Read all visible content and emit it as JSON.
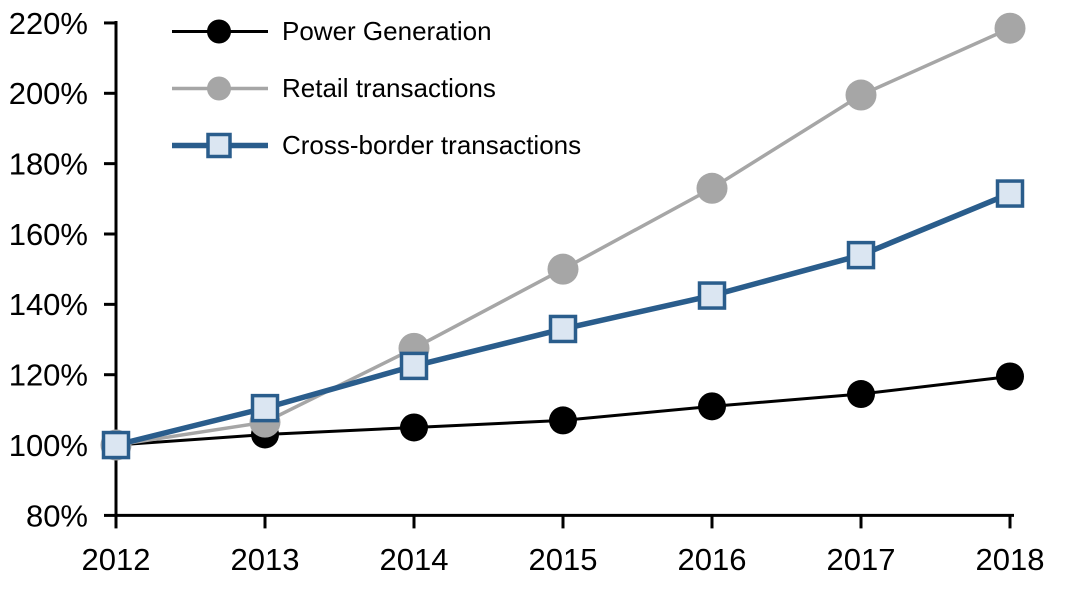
{
  "chart_data": {
    "type": "line",
    "x": [
      2012,
      2013,
      2014,
      2015,
      2016,
      2017,
      2018
    ],
    "x_tick_labels": [
      "2012",
      "2013",
      "2014",
      "2015",
      "2016",
      "2017",
      "2018"
    ],
    "y_tick_values": [
      80,
      100,
      120,
      140,
      160,
      180,
      200,
      220
    ],
    "y_tick_labels": [
      "80%",
      "100%",
      "120%",
      "140%",
      "160%",
      "180%",
      "200%",
      "220%"
    ],
    "ylim": [
      80,
      220
    ],
    "y_unit": "%",
    "grid": false,
    "legend_position": "top-left",
    "axis_color": "#000000",
    "series": [
      {
        "name": "Power Generation",
        "color": "#000000",
        "marker": "circle",
        "marker_fill": "#000000",
        "line_width": 3,
        "values": [
          100,
          103,
          105,
          107,
          111,
          114.5,
          119.5
        ]
      },
      {
        "name": "Retail transactions",
        "color": "#A6A6A6",
        "marker": "circle",
        "marker_fill": "#A6A6A6",
        "line_width": 3.5,
        "values": [
          100,
          106.5,
          127.5,
          150,
          173,
          199.5,
          218.5
        ]
      },
      {
        "name": "Cross-border transactions",
        "color": "#2A5D8C",
        "marker": "square",
        "marker_fill": "#DBE6F2",
        "line_width": 5.5,
        "values": [
          100,
          110.5,
          122.5,
          133,
          142.5,
          154,
          171.5
        ]
      }
    ]
  }
}
